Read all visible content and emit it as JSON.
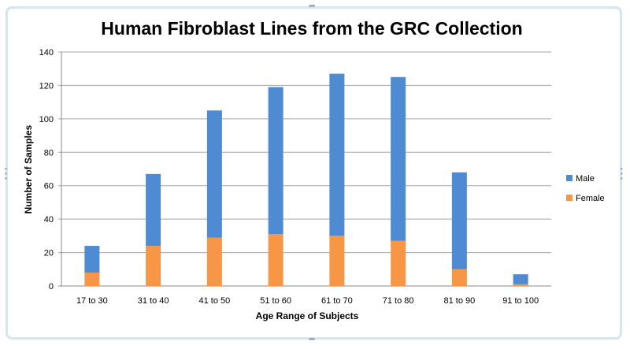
{
  "chart_data": {
    "type": "bar",
    "stacked": true,
    "title": "Human Fibroblast Lines from the GRC Collection",
    "xlabel": "Age Range of Subjects",
    "ylabel": "Number of Samples",
    "ylim": [
      0,
      140
    ],
    "yticks": [
      0,
      20,
      40,
      60,
      80,
      100,
      120,
      140
    ],
    "grid": true,
    "legend": "right",
    "categories": [
      "17 to 30",
      "31 to 40",
      "41 to 50",
      "51 to 60",
      "61 to 70",
      "71 to 80",
      "81 to 90",
      "91 to 100"
    ],
    "series": [
      {
        "name": "Female",
        "color": "#f79646",
        "values": [
          8,
          24,
          29,
          31,
          30,
          27,
          10,
          1
        ]
      },
      {
        "name": "Male",
        "color": "#4f8bd3",
        "values": [
          16,
          43,
          76,
          88,
          97,
          98,
          58,
          6
        ]
      }
    ]
  }
}
